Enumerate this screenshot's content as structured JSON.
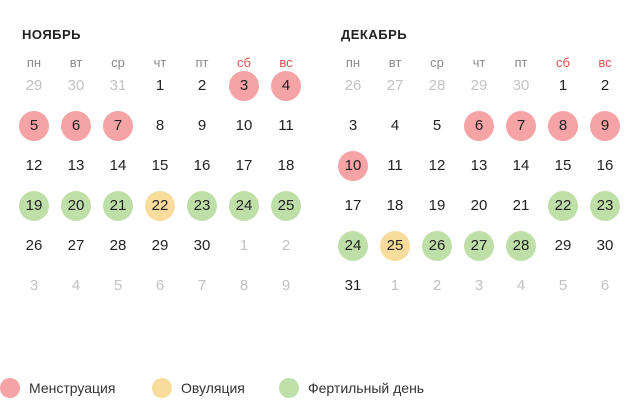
{
  "months": [
    {
      "title": "НОЯБРЬ",
      "weekdays": [
        "пн",
        "вт",
        "ср",
        "чт",
        "пт",
        "сб",
        "вс"
      ],
      "weeks": [
        [
          {
            "d": "29",
            "t": "other"
          },
          {
            "d": "30",
            "t": "other"
          },
          {
            "d": "31",
            "t": "other"
          },
          {
            "d": "1"
          },
          {
            "d": "2"
          },
          {
            "d": "3",
            "t": "menstr"
          },
          {
            "d": "4",
            "t": "menstr"
          }
        ],
        [
          {
            "d": "5",
            "t": "menstr"
          },
          {
            "d": "6",
            "t": "menstr"
          },
          {
            "d": "7",
            "t": "menstr"
          },
          {
            "d": "8"
          },
          {
            "d": "9"
          },
          {
            "d": "10"
          },
          {
            "d": "11"
          }
        ],
        [
          {
            "d": "12"
          },
          {
            "d": "13"
          },
          {
            "d": "14"
          },
          {
            "d": "15"
          },
          {
            "d": "16"
          },
          {
            "d": "17"
          },
          {
            "d": "18"
          }
        ],
        [
          {
            "d": "19",
            "t": "fert"
          },
          {
            "d": "20",
            "t": "fert"
          },
          {
            "d": "21",
            "t": "fert"
          },
          {
            "d": "22",
            "t": "ovul"
          },
          {
            "d": "23",
            "t": "fert"
          },
          {
            "d": "24",
            "t": "fert"
          },
          {
            "d": "25",
            "t": "fert"
          }
        ],
        [
          {
            "d": "26"
          },
          {
            "d": "27"
          },
          {
            "d": "28"
          },
          {
            "d": "29"
          },
          {
            "d": "30"
          },
          {
            "d": "1",
            "t": "other"
          },
          {
            "d": "2",
            "t": "other"
          }
        ],
        [
          {
            "d": "3",
            "t": "other"
          },
          {
            "d": "4",
            "t": "other"
          },
          {
            "d": "5",
            "t": "other"
          },
          {
            "d": "6",
            "t": "other"
          },
          {
            "d": "7",
            "t": "other"
          },
          {
            "d": "8",
            "t": "other"
          },
          {
            "d": "9",
            "t": "other"
          }
        ]
      ]
    },
    {
      "title": "ДЕКАБРЬ",
      "weekdays": [
        "пн",
        "вт",
        "ср",
        "чт",
        "пт",
        "сб",
        "вс"
      ],
      "weeks": [
        [
          {
            "d": "26",
            "t": "other"
          },
          {
            "d": "27",
            "t": "other"
          },
          {
            "d": "28",
            "t": "other"
          },
          {
            "d": "29",
            "t": "other"
          },
          {
            "d": "30",
            "t": "other"
          },
          {
            "d": "1"
          },
          {
            "d": "2"
          }
        ],
        [
          {
            "d": "3"
          },
          {
            "d": "4"
          },
          {
            "d": "5"
          },
          {
            "d": "6",
            "t": "menstr"
          },
          {
            "d": "7",
            "t": "menstr"
          },
          {
            "d": "8",
            "t": "menstr"
          },
          {
            "d": "9",
            "t": "menstr"
          }
        ],
        [
          {
            "d": "10",
            "t": "menstr"
          },
          {
            "d": "11"
          },
          {
            "d": "12"
          },
          {
            "d": "13"
          },
          {
            "d": "14"
          },
          {
            "d": "15"
          },
          {
            "d": "16"
          }
        ],
        [
          {
            "d": "17"
          },
          {
            "d": "18"
          },
          {
            "d": "19"
          },
          {
            "d": "20"
          },
          {
            "d": "21"
          },
          {
            "d": "22",
            "t": "fert"
          },
          {
            "d": "23",
            "t": "fert"
          }
        ],
        [
          {
            "d": "24",
            "t": "fert"
          },
          {
            "d": "25",
            "t": "ovul"
          },
          {
            "d": "26",
            "t": "fert"
          },
          {
            "d": "27",
            "t": "fert"
          },
          {
            "d": "28",
            "t": "fert"
          },
          {
            "d": "29"
          },
          {
            "d": "30"
          }
        ],
        [
          {
            "d": "31"
          },
          {
            "d": "1",
            "t": "other"
          },
          {
            "d": "2",
            "t": "other"
          },
          {
            "d": "3",
            "t": "other"
          },
          {
            "d": "4",
            "t": "other"
          },
          {
            "d": "5",
            "t": "other"
          },
          {
            "d": "6",
            "t": "other"
          }
        ]
      ]
    }
  ],
  "legend": [
    {
      "label": "Менструация",
      "color": "#f5a3a4"
    },
    {
      "label": "Овуляция",
      "color": "#f7dc9c"
    },
    {
      "label": "Фертильный день",
      "color": "#bfdfa9"
    }
  ],
  "colors": {
    "weekend_header": "#e4514e",
    "menstruation": "#f5a3a4",
    "ovulation": "#f7dc9c",
    "fertile": "#bfdfa9",
    "other_month_text": "#c2c2c2"
  }
}
